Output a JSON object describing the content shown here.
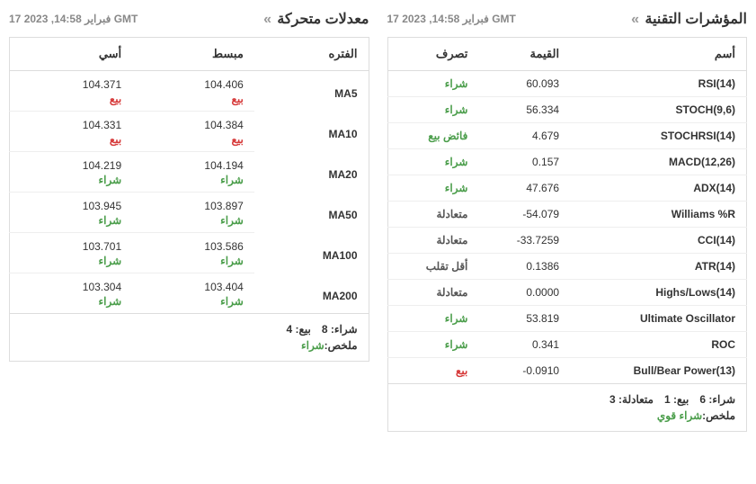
{
  "timestamp": "17 فبراير 14:58, 2023 GMT",
  "tech": {
    "title": "المؤشرات التقنية",
    "cols": {
      "name": "أسم",
      "value": "القيمة",
      "action": "تصرف"
    },
    "rows": [
      {
        "name": "RSI(14)",
        "value": "60.093",
        "action": "شراء",
        "cls": "action-buy"
      },
      {
        "name": "STOCH(9,6)",
        "value": "56.334",
        "action": "شراء",
        "cls": "action-buy"
      },
      {
        "name": "STOCHRSI(14)",
        "value": "4.679",
        "action": "فائض بيع",
        "cls": "action-buy"
      },
      {
        "name": "MACD(12,26)",
        "value": "0.157",
        "action": "شراء",
        "cls": "action-buy"
      },
      {
        "name": "ADX(14)",
        "value": "47.676",
        "action": "شراء",
        "cls": "action-buy"
      },
      {
        "name": "Williams %R",
        "value": "-54.079",
        "action": "متعادلة",
        "cls": "action-neutral"
      },
      {
        "name": "CCI(14)",
        "value": "-33.7259",
        "action": "متعادلة",
        "cls": "action-neutral"
      },
      {
        "name": "ATR(14)",
        "value": "0.1386",
        "action": "أقل تقلب",
        "cls": "action-neutral"
      },
      {
        "name": "Highs/Lows(14)",
        "value": "0.0000",
        "action": "متعادلة",
        "cls": "action-neutral"
      },
      {
        "name": "Ultimate Oscillator",
        "value": "53.819",
        "action": "شراء",
        "cls": "action-buy"
      },
      {
        "name": "ROC",
        "value": "0.341",
        "action": "شراء",
        "cls": "action-buy"
      },
      {
        "name": "Bull/Bear Power(13)",
        "value": "-0.0910",
        "action": "بيع",
        "cls": "action-sell"
      }
    ],
    "summary": {
      "counts_html": "شراء: 6   بيع: 1   متعادلة: 3",
      "label": "ملخص:",
      "value": "شراء قوي",
      "cls": "val-buy"
    }
  },
  "ma": {
    "title": "معدلات متحركة",
    "cols": {
      "period": "الفتره",
      "simple": "مبسط",
      "exp": "أسي"
    },
    "rows": [
      {
        "period": "MA5",
        "simple": "104.406",
        "simple_sig": "بيع",
        "simple_cls": "action-sell",
        "exp": "104.371",
        "exp_sig": "بيع",
        "exp_cls": "action-sell"
      },
      {
        "period": "MA10",
        "simple": "104.384",
        "simple_sig": "بيع",
        "simple_cls": "action-sell",
        "exp": "104.331",
        "exp_sig": "بيع",
        "exp_cls": "action-sell"
      },
      {
        "period": "MA20",
        "simple": "104.194",
        "simple_sig": "شراء",
        "simple_cls": "action-buy",
        "exp": "104.219",
        "exp_sig": "شراء",
        "exp_cls": "action-buy"
      },
      {
        "period": "MA50",
        "simple": "103.897",
        "simple_sig": "شراء",
        "simple_cls": "action-buy",
        "exp": "103.945",
        "exp_sig": "شراء",
        "exp_cls": "action-buy"
      },
      {
        "period": "MA100",
        "simple": "103.586",
        "simple_sig": "شراء",
        "simple_cls": "action-buy",
        "exp": "103.701",
        "exp_sig": "شراء",
        "exp_cls": "action-buy"
      },
      {
        "period": "MA200",
        "simple": "103.404",
        "simple_sig": "شراء",
        "simple_cls": "action-buy",
        "exp": "103.304",
        "exp_sig": "شراء",
        "exp_cls": "action-buy"
      }
    ],
    "summary": {
      "counts_html": "شراء: 8   بيع: 4",
      "label": "ملخص:",
      "value": "شراء",
      "cls": "val-buy"
    }
  }
}
